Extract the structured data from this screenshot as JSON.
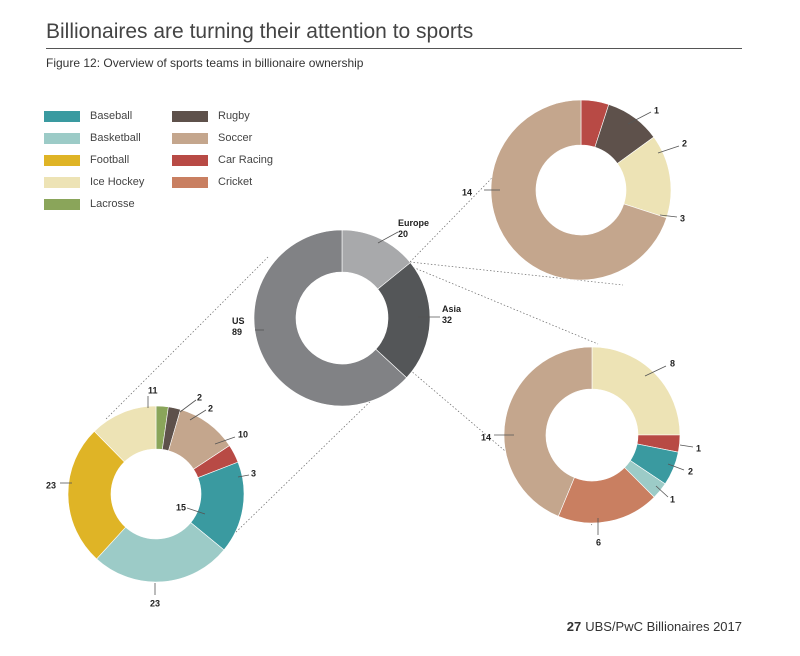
{
  "header": {
    "title": "Billionaires are turning their attention to sports",
    "subtitle": "Figure 12: Overview of sports teams in billionaire ownership"
  },
  "footer": {
    "page_number": "27",
    "publication": "UBS/PwC Billionaires 2017"
  },
  "legend": [
    {
      "key": "baseball",
      "label": "Baseball",
      "color": "#3a9aa0"
    },
    {
      "key": "basketball",
      "label": "Basketball",
      "color": "#9ccbc7"
    },
    {
      "key": "football",
      "label": "Football",
      "color": "#dfb426"
    },
    {
      "key": "icehockey",
      "label": "Ice Hockey",
      "color": "#ede3b5"
    },
    {
      "key": "lacrosse",
      "label": "Lacrosse",
      "color": "#8aa55a"
    },
    {
      "key": "rugby",
      "label": "Rugby",
      "color": "#5e514b"
    },
    {
      "key": "soccer",
      "label": "Soccer",
      "color": "#c4a68d"
    },
    {
      "key": "carracing",
      "label": "Car Racing",
      "color": "#b84a45"
    },
    {
      "key": "cricket",
      "label": "Cricket",
      "color": "#c97f61"
    }
  ],
  "chart_data": [
    {
      "type": "pie",
      "name": "regions",
      "slices": [
        {
          "label": "Europe",
          "value": 20,
          "color": "#a8a9ab"
        },
        {
          "label": "Asia",
          "value": 32,
          "color": "#545658"
        },
        {
          "label": "US",
          "value": 89,
          "color": "#818285"
        }
      ]
    },
    {
      "type": "pie",
      "name": "Europe",
      "slices": [
        {
          "key": "carracing",
          "value": 1
        },
        {
          "key": "rugby",
          "value": 2
        },
        {
          "key": "icehockey",
          "value": 3
        },
        {
          "key": "soccer",
          "value": 14
        }
      ]
    },
    {
      "type": "pie",
      "name": "Asia",
      "slices": [
        {
          "key": "icehockey",
          "value": 8
        },
        {
          "key": "carracing",
          "value": 1
        },
        {
          "key": "baseball",
          "value": 2
        },
        {
          "key": "basketball",
          "value": 1
        },
        {
          "key": "cricket",
          "value": 6
        },
        {
          "key": "soccer",
          "value": 14
        }
      ]
    },
    {
      "type": "pie",
      "name": "US",
      "slices": [
        {
          "key": "lacrosse",
          "value": 2
        },
        {
          "key": "rugby",
          "value": 2
        },
        {
          "key": "soccer",
          "value": 10
        },
        {
          "key": "carracing",
          "value": 3
        },
        {
          "key": "baseball",
          "value": 15
        },
        {
          "key": "basketball",
          "value": 23
        },
        {
          "key": "football",
          "value": 23
        },
        {
          "key": "icehockey",
          "value": 11
        }
      ]
    }
  ]
}
